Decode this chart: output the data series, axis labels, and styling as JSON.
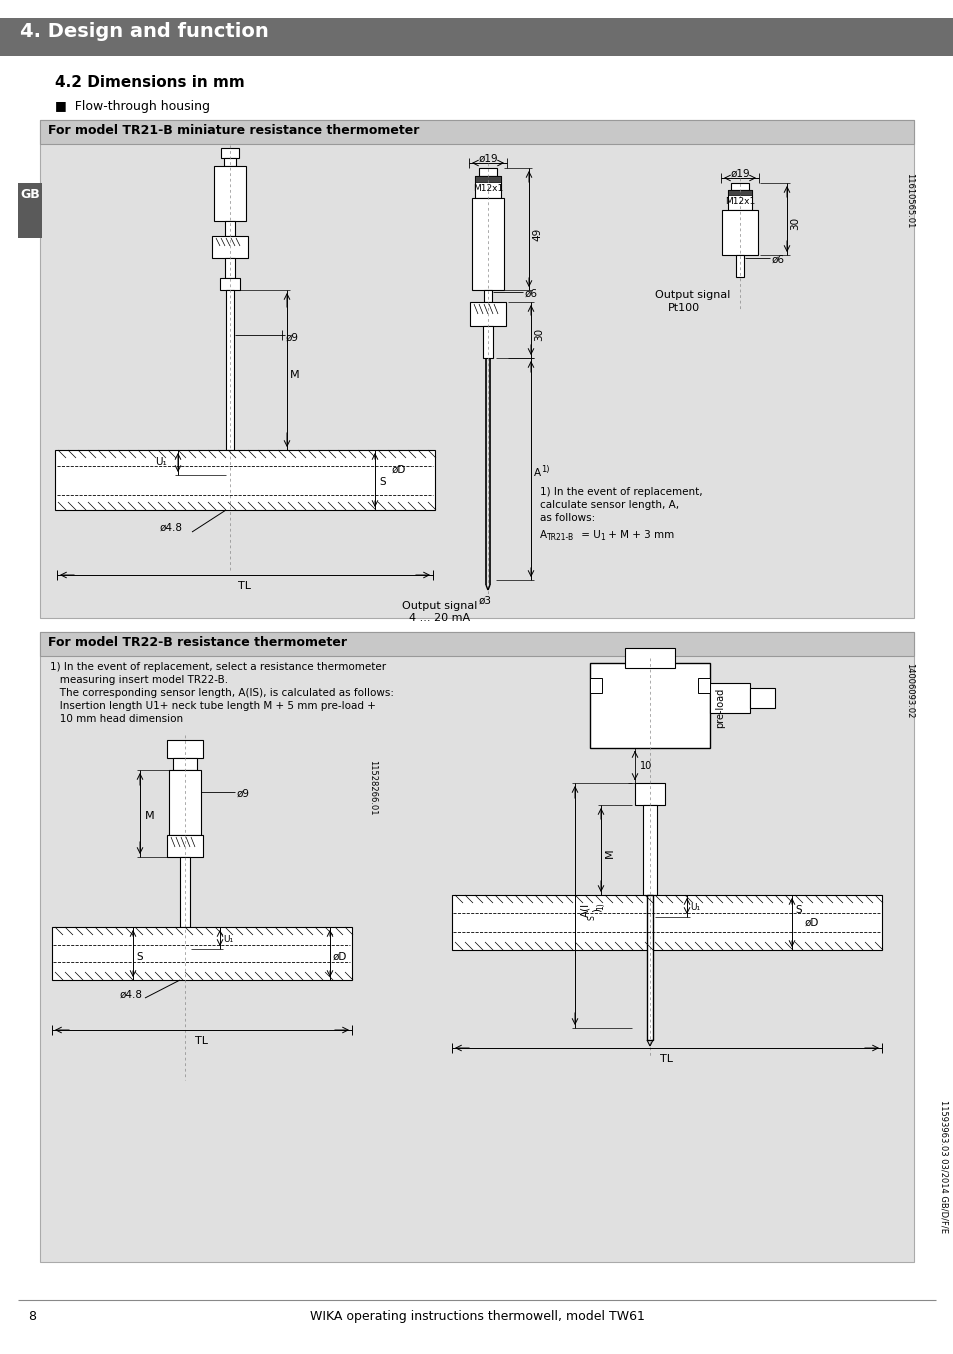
{
  "page_bg": "#ffffff",
  "header_bg": "#6d6d6d",
  "header_text": "4. Design and function",
  "header_text_color": "#ffffff",
  "section_title": "4.2 Dimensions in mm",
  "subsection_bullet": "■  Flow-through housing",
  "box1_title": "For model TR21-B miniature resistance thermometer",
  "box1_bg": "#e0e0e0",
  "box2_title": "For model TR22-B resistance thermometer",
  "box2_bg": "#e0e0e0",
  "gb_label_bg": "#5a5a5a",
  "gb_label_text": "GB",
  "gb_label_color": "#ffffff",
  "footer_page": "8",
  "footer_text": "WIKA operating instructions thermowell, model TW61",
  "note1_line1": "1) In the event of replacement,",
  "note1_line2": "calculate sensor length, A,",
  "note1_line3": "as follows:",
  "note1_line4": "ATR21-B = U1 + M + 3 mm",
  "note2_line1": "1) In the event of replacement, select a resistance thermometer",
  "note2_line2": "   measuring insert model TR22-B.",
  "note2_line3": "   The corresponding sensor length, A(IS), is calculated as follows:",
  "note2_line4": "   Insertion length U1+ neck tube length M + 5 mm pre-load +",
  "note2_line5": "   10 mm head dimension",
  "label_output1": "Output signal",
  "label_output1b": "4 ... 20 mA",
  "label_output2": "Output signal",
  "label_output2b": "Pt100",
  "ref1": "11610565.01",
  "ref2": "11528266.01",
  "ref3": "14006093.02",
  "ref4": "11593963.03 03/2014 GB/D/F/E"
}
